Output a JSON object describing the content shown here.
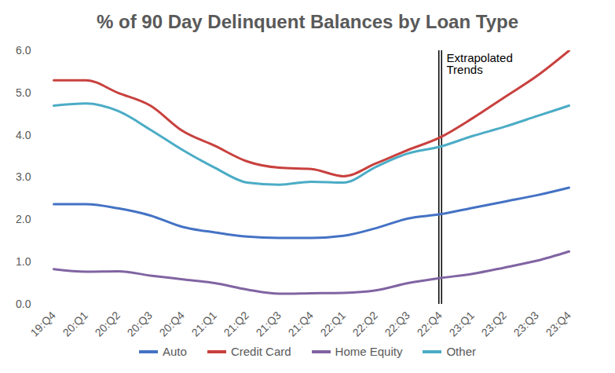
{
  "chart_data": {
    "type": "line",
    "title": "% of 90 Day Delinquent Balances by Loan Type",
    "categories": [
      "19:Q4",
      "20:Q1",
      "20:Q2",
      "20:Q3",
      "20:Q4",
      "21:Q1",
      "21:Q2",
      "21:Q3",
      "21:Q4",
      "22:Q1",
      "22:Q2",
      "22:Q3",
      "22:Q4",
      "23:Q1",
      "23:Q2",
      "23:Q3",
      "23:Q4"
    ],
    "series": [
      {
        "name": "Auto",
        "color": "#4472c4",
        "values": [
          2.37,
          2.37,
          2.27,
          2.1,
          1.83,
          1.7,
          1.6,
          1.57,
          1.57,
          1.62,
          1.8,
          2.03,
          2.13,
          2.28,
          2.43,
          2.58,
          2.76
        ]
      },
      {
        "name": "Credit Card",
        "color": "#c8413e",
        "values": [
          5.3,
          5.3,
          5.0,
          4.7,
          4.1,
          3.75,
          3.38,
          3.23,
          3.2,
          3.03,
          3.33,
          3.65,
          3.95,
          4.4,
          4.9,
          5.4,
          6.0
        ]
      },
      {
        "name": "Home Equity",
        "color": "#8064a2",
        "values": [
          0.83,
          0.77,
          0.78,
          0.68,
          0.59,
          0.5,
          0.35,
          0.25,
          0.26,
          0.27,
          0.33,
          0.5,
          0.62,
          0.72,
          0.87,
          1.03,
          1.25
        ]
      },
      {
        "name": "Other",
        "color": "#4bacc6",
        "values": [
          4.7,
          4.75,
          4.57,
          4.13,
          3.65,
          3.23,
          2.88,
          2.83,
          2.9,
          2.88,
          3.25,
          3.57,
          3.73,
          3.98,
          4.2,
          4.45,
          4.7
        ]
      }
    ],
    "ylim": [
      0,
      6
    ],
    "yticks": [
      {
        "value": 0,
        "label": "0.0"
      },
      {
        "value": 1,
        "label": "1.0"
      },
      {
        "value": 2,
        "label": "2.0"
      },
      {
        "value": 3,
        "label": "3.0"
      },
      {
        "value": 4,
        "label": "4.0"
      },
      {
        "value": 5,
        "label": "5.0"
      },
      {
        "value": 6,
        "label": "6.0"
      }
    ],
    "grid": false,
    "legend": "bottom",
    "annotations": [
      {
        "text": "Extrapolated Trends",
        "x": "22:Q4"
      }
    ]
  }
}
